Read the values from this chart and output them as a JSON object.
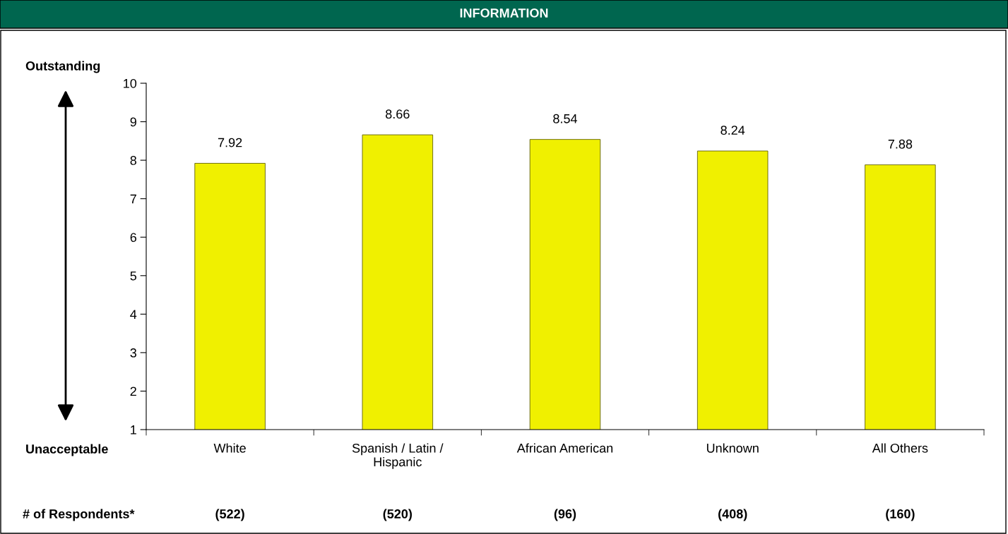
{
  "chart_data": {
    "type": "bar",
    "title": "INFORMATION",
    "categories": [
      "White",
      "Spanish / Latin /\nHispanic",
      "African American",
      "Unknown",
      "All Others"
    ],
    "series": [
      {
        "color": "#f0f000",
        "values": [
          7.92,
          8.66,
          8.54,
          8.24,
          7.88
        ]
      }
    ],
    "ylim": [
      1,
      10
    ],
    "yticks": [
      1,
      2,
      3,
      4,
      5,
      6,
      7,
      8,
      9,
      10
    ],
    "data_labels": true,
    "grid": false,
    "legend": false,
    "annotations": [
      "Outstanding",
      "Unacceptable",
      "# of Respondents*",
      "(522)",
      "(520)",
      "(96)",
      "(408)",
      "(160)"
    ]
  }
}
